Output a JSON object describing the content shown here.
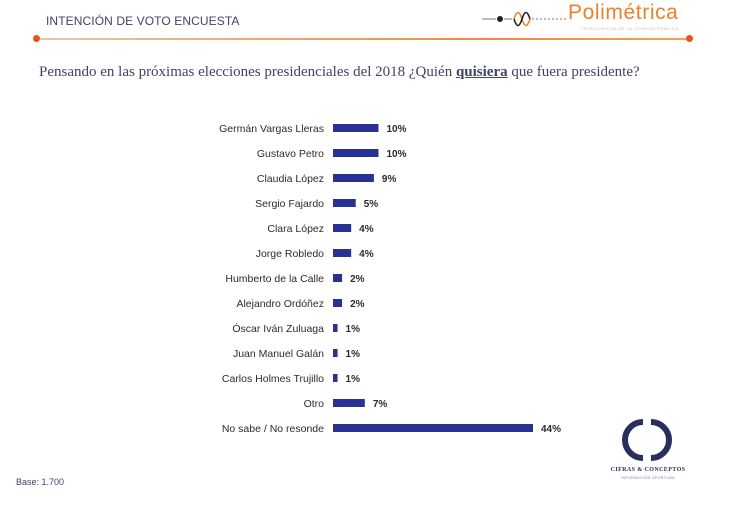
{
  "header": {
    "title": "INTENCIÓN DE VOTO ENCUESTA",
    "brand": "Polimétrica",
    "brand_tagline": "INTELIGENCIA DE LA OPINIÓN PÚBLICA"
  },
  "question": {
    "before": "Pensando en las próximas elecciones presidenciales del 2018 ¿Quién ",
    "emphasis": "quisiera",
    "after": " que fuera presidente?"
  },
  "footer": {
    "base": "Base: 1.700",
    "logo_name": "CIFRAS & CONCEPTOS",
    "logo_tagline": "INFORMACIÓN OPORTUNA"
  },
  "colors": {
    "bar": "#2a3194",
    "accent": "#f08a35",
    "text": "#3d4563"
  },
  "chart_data": {
    "type": "bar",
    "orientation": "horizontal",
    "categories": [
      "Germán Vargas Lleras",
      "Gustavo Petro",
      "Claudia López",
      "Sergio Fajardo",
      "Clara López",
      "Jorge Robledo",
      "Humberto de la Calle",
      "Alejandro Ordóñez",
      "Óscar Iván Zuluaga",
      "Juan Manuel Galán",
      "Carlos Holmes Trujillo",
      "Otro",
      "No sabe / No resonde"
    ],
    "values": [
      10,
      10,
      9,
      5,
      4,
      4,
      2,
      2,
      1,
      1,
      1,
      7,
      44
    ],
    "data_labels": [
      "10%",
      "10%",
      "9%",
      "5%",
      "4%",
      "4%",
      "2%",
      "2%",
      "1%",
      "1%",
      "1%",
      "7%",
      "44%"
    ],
    "unit": "%",
    "xlim": [
      0,
      44
    ],
    "grid": false,
    "legend": "none"
  }
}
